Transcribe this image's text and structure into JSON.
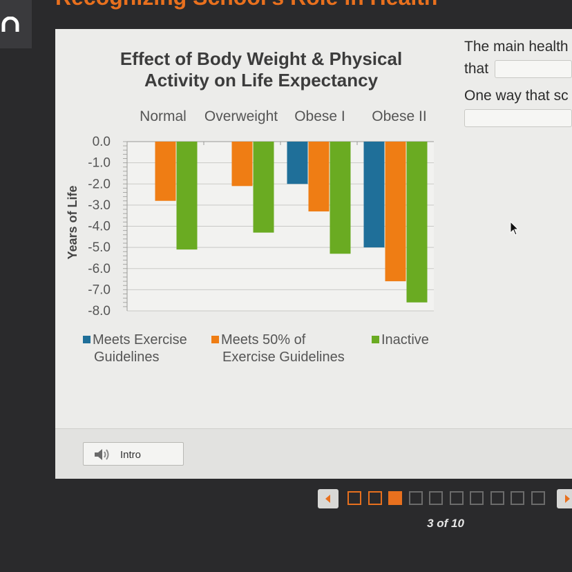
{
  "page": {
    "title": "Recognizing School's Role in Health"
  },
  "question": {
    "line1_prefix": "The main health",
    "line1_cont": "that",
    "line2_prefix": "One way that sc"
  },
  "intro_button": {
    "label": "Intro"
  },
  "pagination": {
    "current": 3,
    "total": 10,
    "label": "3 of 10"
  },
  "colors": {
    "meets": "#1f6f99",
    "half": "#ef7d14",
    "inactive": "#6aab22",
    "accent": "#e8701e"
  },
  "chart_data": {
    "type": "bar",
    "title": "Effect of Body Weight & Physical Activity on Life Expectancy",
    "title_lines": [
      "Effect of Body Weight & Physical",
      "Activity on Life Expectancy"
    ],
    "xlabel": "",
    "ylabel": "Years of Life",
    "ylim": [
      -8.0,
      0.0
    ],
    "yticks": [
      "0.0",
      "-1.0",
      "-2.0",
      "-3.0",
      "-4.0",
      "-5.0",
      "-6.0",
      "-7.0",
      "-8.0"
    ],
    "categories": [
      "Normal",
      "Overweight",
      "Obese I",
      "Obese II"
    ],
    "x_axis_position": "top",
    "legend_position": "bottom",
    "grid": true,
    "series": [
      {
        "name": "Meets Exercise Guidelines",
        "legend_lines": [
          "Meets Exercise",
          "Guidelines"
        ],
        "color": "#1f6f99",
        "values": [
          0.0,
          0.0,
          -2.0,
          -5.0
        ]
      },
      {
        "name": "Meets 50% of Exercise Guidelines",
        "legend_lines": [
          "Meets 50% of",
          "Exercise Guidelines"
        ],
        "color": "#ef7d14",
        "values": [
          -2.8,
          -2.1,
          -3.3,
          -6.6
        ]
      },
      {
        "name": "Inactive",
        "legend_lines": [
          "Inactive"
        ],
        "color": "#6aab22",
        "values": [
          -5.1,
          -4.3,
          -5.3,
          -7.6
        ]
      }
    ]
  }
}
